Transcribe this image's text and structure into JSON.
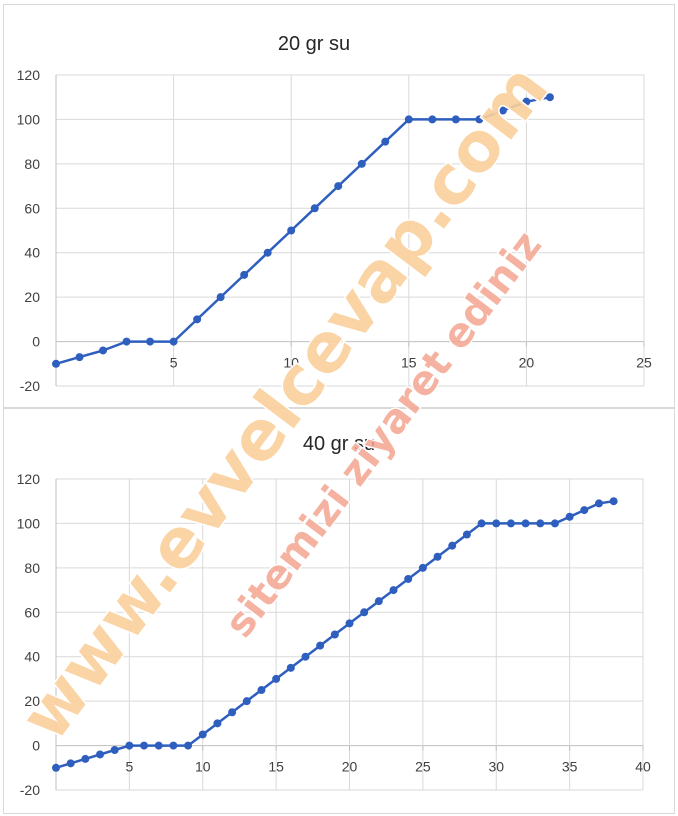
{
  "chart_data": [
    {
      "type": "line",
      "title": "20 gr su",
      "xlim": [
        0,
        25
      ],
      "ylim": [
        -20,
        120
      ],
      "x_ticks": [
        5,
        10,
        15,
        20,
        25
      ],
      "y_ticks": [
        -20,
        0,
        20,
        40,
        60,
        80,
        100,
        120
      ],
      "x": [
        0,
        1,
        2,
        3,
        4,
        5,
        6,
        7,
        8,
        9,
        10,
        11,
        12,
        13,
        14,
        15,
        16,
        17,
        18,
        19,
        20,
        21
      ],
      "series": [
        {
          "values": [
            -10,
            -7,
            -4,
            0,
            0,
            0,
            10,
            20,
            30,
            40,
            50,
            60,
            70,
            80,
            90,
            100,
            100,
            100,
            100,
            104,
            108,
            110
          ]
        }
      ],
      "color": "#2f5fbe",
      "grid": true
    },
    {
      "type": "line",
      "title": "40 gr su",
      "xlim": [
        0,
        40
      ],
      "ylim": [
        -20,
        120
      ],
      "x_ticks": [
        5,
        10,
        15,
        20,
        25,
        30,
        35,
        40
      ],
      "y_ticks": [
        -20,
        0,
        20,
        40,
        60,
        80,
        100,
        120
      ],
      "x": [
        0,
        1,
        2,
        3,
        4,
        5,
        6,
        7,
        8,
        9,
        10,
        11,
        12,
        13,
        14,
        15,
        16,
        17,
        18,
        19,
        20,
        21,
        22,
        23,
        24,
        25,
        26,
        27,
        28,
        29,
        30,
        31,
        32,
        33,
        34,
        35,
        36,
        37,
        38
      ],
      "series": [
        {
          "values": [
            -10,
            -8,
            -6,
            -4,
            -2,
            0,
            0,
            0,
            0,
            0,
            5,
            10,
            15,
            20,
            25,
            30,
            35,
            40,
            45,
            50,
            55,
            60,
            65,
            70,
            75,
            80,
            85,
            90,
            95,
            100,
            100,
            100,
            100,
            100,
            100,
            103,
            106,
            109,
            110
          ]
        }
      ],
      "color": "#2f5fbe",
      "grid": true
    }
  ],
  "watermark": {
    "line1": "www.evvelcevap.com",
    "line2": "sitemizi ziyaret ediniz"
  }
}
